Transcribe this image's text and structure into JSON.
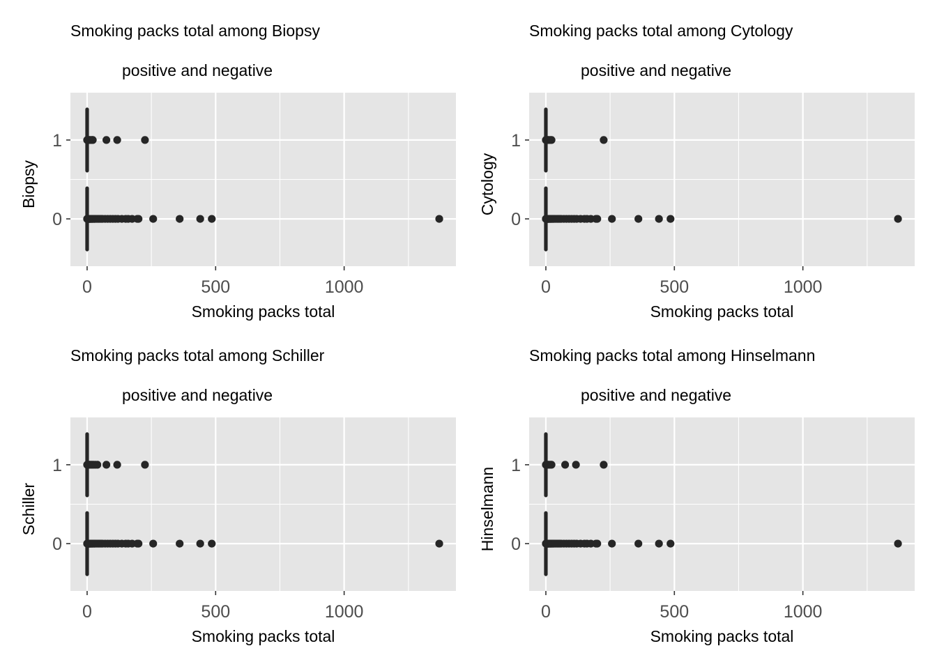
{
  "chart_data": [
    {
      "type": "scatter",
      "title_line1": "Smoking packs total among Biopsy",
      "title_line2": "positive and negative",
      "xlabel": "Smoking packs total",
      "ylabel": "Biopsy",
      "xlim": [
        -65,
        1435
      ],
      "ylim": [
        -0.6,
        1.6
      ],
      "xticks": [
        0,
        500,
        1000
      ],
      "yticks": [
        0,
        1
      ],
      "grid": true,
      "series": [
        {
          "y": 0,
          "x": [
            0,
            0.5,
            1,
            2,
            3,
            4,
            5,
            6,
            7,
            8,
            9,
            10,
            12,
            14,
            16,
            18,
            20,
            22,
            25,
            28,
            30,
            35,
            40,
            45,
            50,
            55,
            60,
            70,
            80,
            90,
            100,
            110,
            120,
            135,
            150,
            160,
            175,
            195,
            200,
            257,
            360,
            440,
            485,
            1370
          ]
        },
        {
          "y": 1,
          "x": [
            0,
            2,
            5,
            8,
            10,
            15,
            20,
            22,
            75,
            117,
            225
          ]
        }
      ]
    },
    {
      "type": "scatter",
      "title_line1": "Smoking packs total among Cytology",
      "title_line2": "positive and negative",
      "xlabel": "Smoking packs total",
      "ylabel": "Cytology",
      "xlim": [
        -65,
        1435
      ],
      "ylim": [
        -0.6,
        1.6
      ],
      "xticks": [
        0,
        500,
        1000
      ],
      "yticks": [
        0,
        1
      ],
      "grid": true,
      "series": [
        {
          "y": 0,
          "x": [
            0,
            0.5,
            1,
            2,
            3,
            4,
            5,
            6,
            7,
            8,
            9,
            10,
            12,
            14,
            16,
            18,
            20,
            22,
            25,
            28,
            30,
            35,
            40,
            45,
            50,
            55,
            60,
            70,
            80,
            90,
            100,
            110,
            120,
            135,
            150,
            160,
            175,
            195,
            200,
            257,
            360,
            440,
            485,
            1370
          ]
        },
        {
          "y": 1,
          "x": [
            0,
            2,
            5,
            8,
            12,
            18,
            22,
            225
          ]
        }
      ]
    },
    {
      "type": "scatter",
      "title_line1": "Smoking packs total among Schiller",
      "title_line2": "positive and negative",
      "xlabel": "Smoking packs total",
      "ylabel": "Schiller",
      "xlim": [
        -65,
        1435
      ],
      "ylim": [
        -0.6,
        1.6
      ],
      "xticks": [
        0,
        500,
        1000
      ],
      "yticks": [
        0,
        1
      ],
      "grid": true,
      "series": [
        {
          "y": 0,
          "x": [
            0,
            0.5,
            1,
            2,
            3,
            4,
            5,
            6,
            7,
            8,
            9,
            10,
            12,
            14,
            16,
            18,
            20,
            22,
            25,
            28,
            30,
            35,
            40,
            45,
            50,
            55,
            60,
            70,
            80,
            90,
            100,
            110,
            120,
            135,
            150,
            160,
            175,
            195,
            200,
            257,
            360,
            440,
            485,
            1370
          ]
        },
        {
          "y": 1,
          "x": [
            0,
            2,
            5,
            8,
            10,
            15,
            20,
            25,
            32,
            40,
            75,
            117,
            225
          ]
        }
      ]
    },
    {
      "type": "scatter",
      "title_line1": "Smoking packs total among Hinselmann",
      "title_line2": "positive and negative",
      "xlabel": "Smoking packs total",
      "ylabel": "Hinselmann",
      "xlim": [
        -65,
        1435
      ],
      "ylim": [
        -0.6,
        1.6
      ],
      "xticks": [
        0,
        500,
        1000
      ],
      "yticks": [
        0,
        1
      ],
      "grid": true,
      "series": [
        {
          "y": 0,
          "x": [
            0,
            0.5,
            1,
            2,
            3,
            4,
            5,
            6,
            7,
            8,
            9,
            10,
            12,
            14,
            16,
            18,
            20,
            22,
            25,
            28,
            30,
            35,
            40,
            45,
            50,
            55,
            60,
            70,
            80,
            90,
            100,
            110,
            120,
            135,
            150,
            160,
            175,
            195,
            200,
            257,
            360,
            440,
            485,
            1370
          ]
        },
        {
          "y": 1,
          "x": [
            0,
            2,
            5,
            8,
            12,
            18,
            22,
            75,
            117,
            225
          ]
        }
      ]
    }
  ],
  "colors": {
    "panel_background": "#e5e5e5",
    "gridline": "#ffffff",
    "point": "#262626",
    "tick_label": "#4d4d4d",
    "text": "#000000"
  }
}
